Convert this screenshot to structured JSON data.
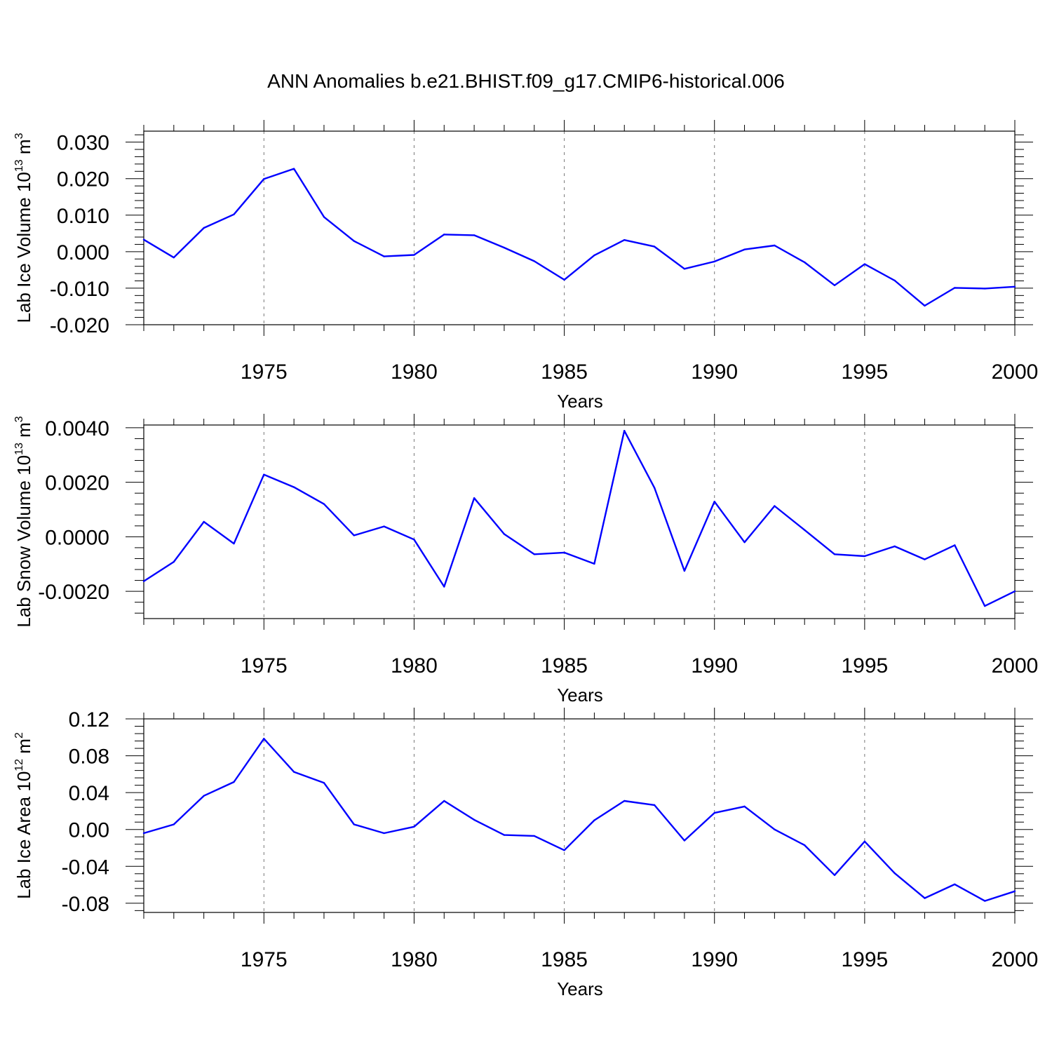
{
  "title": "ANN Anomalies b.e21.BHIST.f09_g17.CMIP6-historical.006",
  "line_color": "#0000ff",
  "chart_data": [
    {
      "type": "line",
      "ylabel_main": "Lab Ice Volume 10",
      "ylabel_exp": "13",
      "ylabel_unit": "m",
      "ylabel_unit_exp": "3",
      "xlabel": "Years",
      "xlim": [
        1971,
        2000
      ],
      "ylim": [
        -0.02,
        0.033
      ],
      "yticks": [
        -0.02,
        -0.01,
        0.0,
        0.01,
        0.02,
        0.03
      ],
      "yticklabels": [
        "-0.020",
        "-0.010",
        "0.000",
        "0.010",
        "0.020",
        "0.030"
      ],
      "xticks": [
        1975,
        1980,
        1985,
        1990,
        1995,
        2000
      ],
      "xticklabels": [
        "1975",
        "1980",
        "1985",
        "1990",
        "1995",
        "2000"
      ],
      "x": [
        1971,
        1972,
        1973,
        1974,
        1975,
        1976,
        1977,
        1978,
        1979,
        1980,
        1981,
        1982,
        1983,
        1984,
        1985,
        1986,
        1987,
        1988,
        1989,
        1990,
        1991,
        1992,
        1993,
        1994,
        1995,
        1996,
        1997,
        1998,
        1999,
        2000
      ],
      "values": [
        0.0033,
        -0.0016,
        0.0065,
        0.0102,
        0.0199,
        0.0227,
        0.0095,
        0.0029,
        -0.0013,
        -0.0009,
        0.0047,
        0.0045,
        0.0011,
        -0.0026,
        -0.0077,
        -0.001,
        0.0032,
        0.0014,
        -0.0047,
        -0.0027,
        0.0006,
        0.0017,
        -0.0029,
        -0.0092,
        -0.0034,
        -0.0079,
        -0.0148,
        -0.0099,
        -0.0101,
        -0.0096
      ]
    },
    {
      "type": "line",
      "ylabel_main": "Lab Snow Volume 10",
      "ylabel_exp": "13",
      "ylabel_unit": "m",
      "ylabel_unit_exp": "3",
      "xlabel": "Years",
      "xlim": [
        1971,
        2000
      ],
      "ylim": [
        -0.003,
        0.0041
      ],
      "yticks": [
        -0.002,
        0.0,
        0.002,
        0.004
      ],
      "yticklabels": [
        "-0.0020",
        "0.0000",
        "0.0020",
        "0.0040"
      ],
      "xticks": [
        1975,
        1980,
        1985,
        1990,
        1995,
        2000
      ],
      "xticklabels": [
        "1975",
        "1980",
        "1985",
        "1990",
        "1995",
        "2000"
      ],
      "x": [
        1971,
        1972,
        1973,
        1974,
        1975,
        1976,
        1977,
        1978,
        1979,
        1980,
        1981,
        1982,
        1983,
        1984,
        1985,
        1986,
        1987,
        1988,
        1989,
        1990,
        1991,
        1992,
        1993,
        1994,
        1995,
        1996,
        1997,
        1998,
        1999,
        2000
      ],
      "values": [
        -0.00163,
        -0.00092,
        0.00055,
        -0.00025,
        0.00228,
        0.00182,
        0.0012,
        5e-05,
        0.00038,
        -0.0001,
        -0.00183,
        0.00142,
        0.0001,
        -0.00064,
        -0.00058,
        -0.00099,
        0.00389,
        0.0018,
        -0.00125,
        0.00129,
        -0.0002,
        0.00113,
        0.00025,
        -0.00064,
        -0.00071,
        -0.00035,
        -0.00083,
        -0.00031,
        -0.00254,
        -0.002
      ]
    },
    {
      "type": "line",
      "ylabel_main": "Lab Ice Area 10",
      "ylabel_exp": "12",
      "ylabel_unit": "m",
      "ylabel_unit_exp": "2",
      "xlabel": "Years",
      "xlim": [
        1971,
        2000
      ],
      "ylim": [
        -0.09,
        0.12
      ],
      "yticks": [
        -0.08,
        -0.04,
        0.0,
        0.04,
        0.08,
        0.12
      ],
      "yticklabels": [
        "-0.08",
        "-0.04",
        "0.00",
        "0.04",
        "0.08",
        "0.12"
      ],
      "xticks": [
        1975,
        1980,
        1985,
        1990,
        1995,
        2000
      ],
      "xticklabels": [
        "1975",
        "1980",
        "1985",
        "1990",
        "1995",
        "2000"
      ],
      "x": [
        1971,
        1972,
        1973,
        1974,
        1975,
        1976,
        1977,
        1978,
        1979,
        1980,
        1981,
        1982,
        1983,
        1984,
        1985,
        1986,
        1987,
        1988,
        1989,
        1990,
        1991,
        1992,
        1993,
        1994,
        1995,
        1996,
        1997,
        1998,
        1999,
        2000
      ],
      "values": [
        -0.004,
        0.0055,
        0.0365,
        0.0515,
        0.0985,
        0.0625,
        0.0505,
        0.0055,
        -0.004,
        0.003,
        0.031,
        0.0105,
        -0.006,
        -0.007,
        -0.0225,
        0.01,
        0.031,
        0.0265,
        -0.012,
        0.018,
        0.025,
        0.0,
        -0.017,
        -0.0495,
        -0.013,
        -0.0475,
        -0.0745,
        -0.0595,
        -0.0775,
        -0.067
      ]
    }
  ]
}
